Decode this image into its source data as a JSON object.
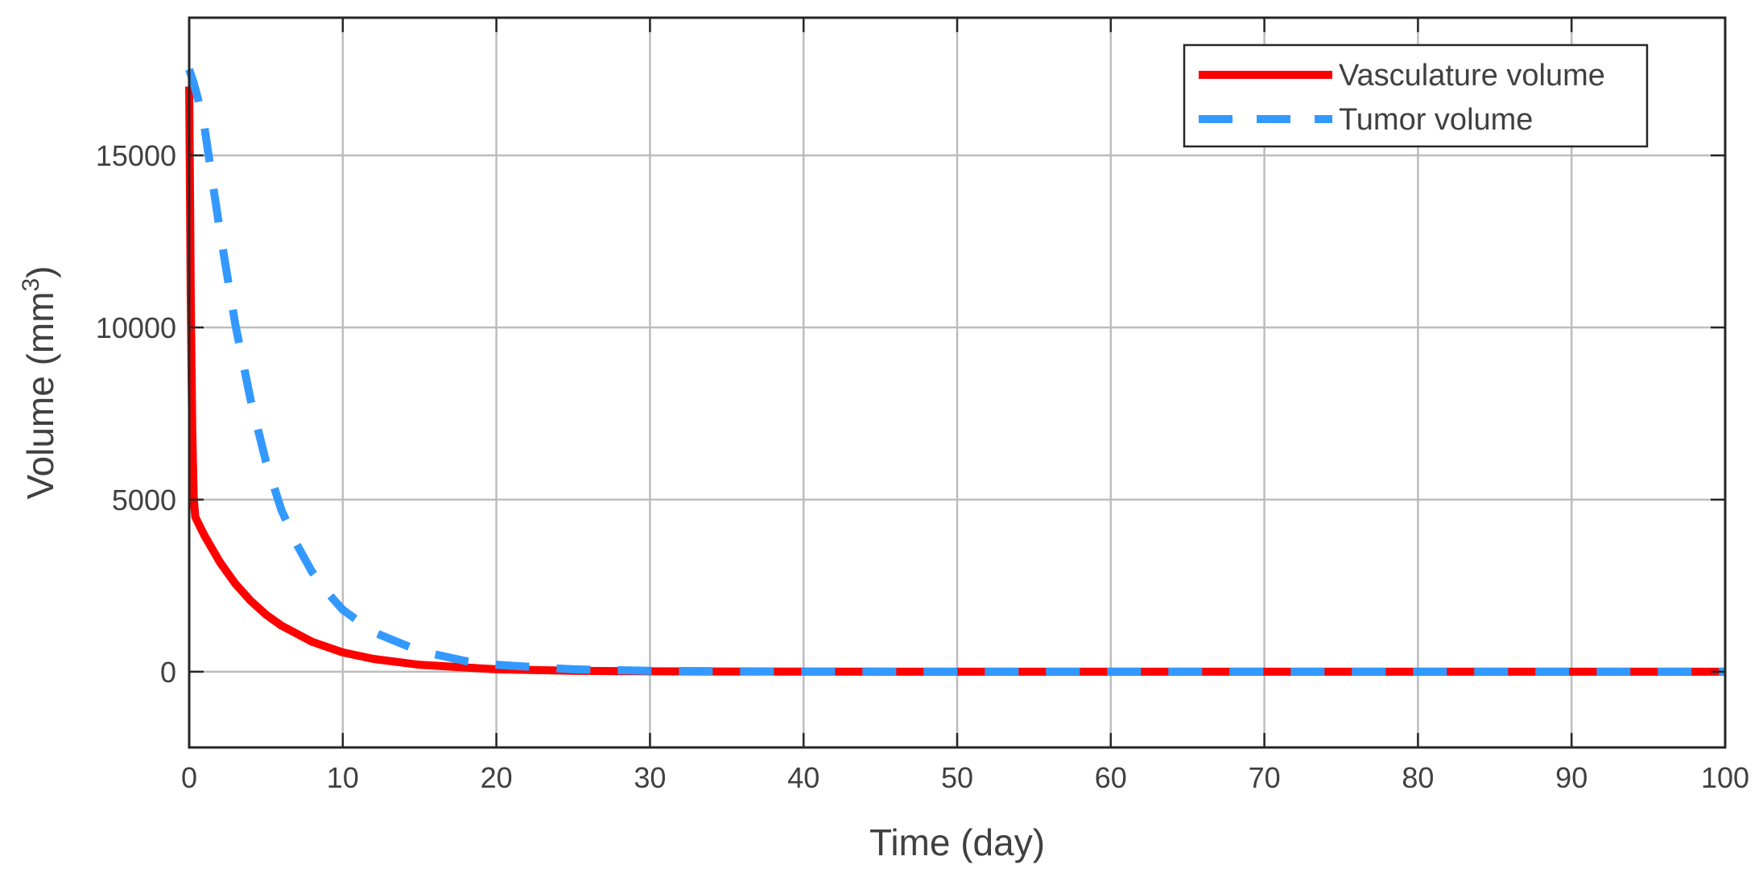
{
  "chart_data": {
    "type": "line",
    "title": "",
    "xlabel": "Time (day)",
    "ylabel_main": "Volume (mm",
    "ylabel_sup": "3",
    "ylabel_close": ")",
    "xlim": [
      0,
      100
    ],
    "ylim": [
      -2200,
      19000
    ],
    "xticks": [
      0,
      10,
      20,
      30,
      40,
      50,
      60,
      70,
      80,
      90,
      100
    ],
    "yticks": [
      0,
      5000,
      10000,
      15000
    ],
    "grid": true,
    "legend_position": "top-right",
    "series": [
      {
        "name": "Vasculature volume",
        "color": "#ff0000",
        "style": "solid",
        "x": [
          0,
          0.05,
          0.1,
          0.2,
          0.3,
          0.4,
          0.5,
          1,
          2,
          3,
          4,
          5,
          6,
          8,
          10,
          12,
          15,
          20,
          25,
          30,
          40,
          50,
          60,
          70,
          80,
          90,
          100
        ],
        "y": [
          17000,
          14000,
          11000,
          7000,
          5000,
          4500,
          4400,
          3950,
          3180,
          2560,
          2060,
          1660,
          1340,
          870,
          560,
          370,
          200,
          70,
          25,
          10,
          2,
          0,
          0,
          0,
          0,
          0,
          0
        ]
      },
      {
        "name": "Tumor volume",
        "color": "#3399ff",
        "style": "dashed",
        "x": [
          0,
          0.3,
          0.6,
          1,
          1.5,
          2,
          3,
          4,
          5,
          6,
          7,
          8,
          9,
          10,
          12,
          15,
          18,
          20,
          25,
          30,
          40,
          50,
          60,
          70,
          80,
          90,
          100
        ],
        "y": [
          17500,
          17100,
          16600,
          15800,
          14300,
          12800,
          10100,
          7900,
          6100,
          4700,
          3700,
          2900,
          2300,
          1800,
          1150,
          600,
          310,
          200,
          70,
          25,
          3,
          0,
          0,
          0,
          0,
          0,
          0
        ]
      }
    ]
  }
}
